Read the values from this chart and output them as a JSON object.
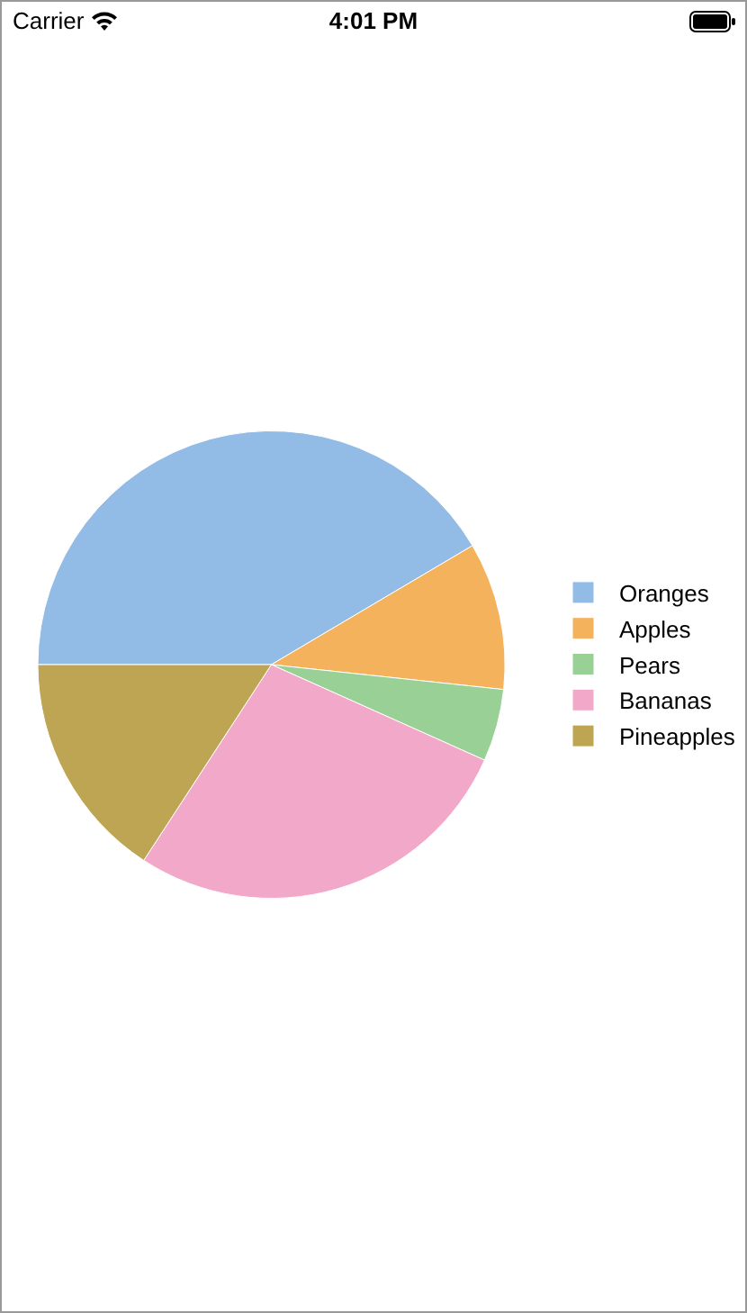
{
  "chart_data": {
    "type": "pie",
    "categories": [
      "Oranges",
      "Apples",
      "Pears",
      "Bananas",
      "Pineapples"
    ],
    "values": [
      41.5,
      10.2,
      5.0,
      27.5,
      15.8
    ],
    "colors": [
      "#92bbe6",
      "#f5b25d",
      "#98d095",
      "#f2a8c8",
      "#bea553"
    ],
    "legend": "right",
    "annotations": [
      "Carrier",
      "4:01 PM"
    ]
  }
}
